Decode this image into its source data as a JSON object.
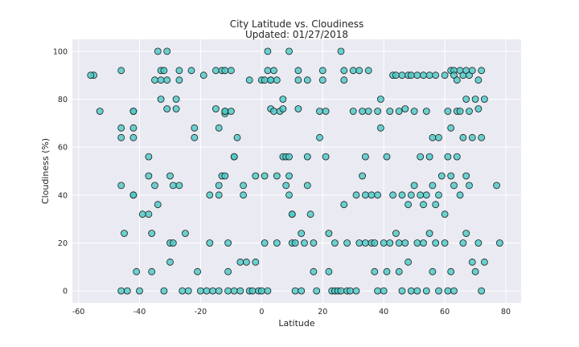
{
  "chart_data": {
    "type": "scatter",
    "title": "City Latitude vs. Cloudiness",
    "subtitle": "Updated: 01/27/2018",
    "xlabel": "Latitude",
    "ylabel": "Cloudiness (%)",
    "xlim": [
      -62,
      85
    ],
    "ylim": [
      -5,
      105
    ],
    "xticks": [
      -60,
      -40,
      -20,
      0,
      20,
      40,
      60,
      80
    ],
    "yticks": [
      0,
      20,
      40,
      60,
      80,
      100
    ],
    "grid": true,
    "legend": "none",
    "colors": {
      "background": "#eaeaf2",
      "grid": "#ffffff",
      "marker_fill": "#48c9c5",
      "marker_edge": "#1a1a1a",
      "text": "#262626"
    },
    "points": [
      [
        -55,
        90
      ],
      [
        -53,
        75
      ],
      [
        -46,
        92
      ],
      [
        -46,
        68
      ],
      [
        -46,
        64
      ],
      [
        -46,
        44
      ],
      [
        -45,
        24
      ],
      [
        -46,
        0
      ],
      [
        -44,
        0
      ],
      [
        -42,
        75
      ],
      [
        -42,
        75
      ],
      [
        -42,
        68
      ],
      [
        -42,
        64
      ],
      [
        -42,
        40
      ],
      [
        -42,
        40
      ],
      [
        -41,
        8
      ],
      [
        -40,
        0
      ],
      [
        -39,
        32
      ],
      [
        -37,
        56
      ],
      [
        -37,
        48
      ],
      [
        -37,
        32
      ],
      [
        -36,
        24
      ],
      [
        -36,
        8
      ],
      [
        -35,
        88
      ],
      [
        -35,
        44
      ],
      [
        -34,
        36
      ],
      [
        -33,
        80
      ],
      [
        -33,
        88
      ],
      [
        -33,
        92
      ],
      [
        -32,
        92
      ],
      [
        -32,
        0
      ],
      [
        -31,
        100
      ],
      [
        -31,
        88
      ],
      [
        -31,
        76
      ],
      [
        -30,
        48
      ],
      [
        -30,
        12
      ],
      [
        -30,
        20
      ],
      [
        -29,
        20
      ],
      [
        -29,
        44
      ],
      [
        -28,
        76
      ],
      [
        -28,
        80
      ],
      [
        -27,
        88
      ],
      [
        -27,
        92
      ],
      [
        -27,
        44
      ],
      [
        -26,
        0
      ],
      [
        -25,
        24
      ],
      [
        -24,
        0
      ],
      [
        -23,
        92
      ],
      [
        -22,
        68
      ],
      [
        -22,
        64
      ],
      [
        -21,
        8
      ],
      [
        -20,
        0
      ],
      [
        -19,
        90
      ],
      [
        -18,
        0
      ],
      [
        -17,
        40
      ],
      [
        -17,
        20
      ],
      [
        -16,
        0
      ],
      [
        -15,
        92
      ],
      [
        -15,
        76
      ],
      [
        -14,
        68
      ],
      [
        -14,
        44
      ],
      [
        -14,
        40
      ],
      [
        -14,
        0
      ],
      [
        -13,
        48
      ],
      [
        -13,
        92
      ],
      [
        -12,
        92
      ],
      [
        -12,
        74
      ],
      [
        -12,
        75
      ],
      [
        -12,
        75
      ],
      [
        -12,
        48
      ],
      [
        -11,
        20
      ],
      [
        -11,
        0
      ],
      [
        -11,
        8
      ],
      [
        -10,
        92
      ],
      [
        -10,
        75
      ],
      [
        -9,
        56
      ],
      [
        -9,
        56
      ],
      [
        -9,
        0
      ],
      [
        -8,
        64
      ],
      [
        -7,
        12
      ],
      [
        -7,
        0
      ],
      [
        -6,
        40
      ],
      [
        -6,
        44
      ],
      [
        -5,
        12
      ],
      [
        -4,
        88
      ],
      [
        -4,
        0
      ],
      [
        -3,
        0
      ],
      [
        -2,
        48
      ],
      [
        -2,
        12
      ],
      [
        -1,
        0
      ],
      [
        0,
        88
      ],
      [
        0,
        0
      ],
      [
        1,
        88
      ],
      [
        1,
        48
      ],
      [
        1,
        20
      ],
      [
        2,
        92
      ],
      [
        2,
        0
      ],
      [
        3,
        88
      ],
      [
        3,
        88
      ],
      [
        3,
        76
      ],
      [
        4,
        92
      ],
      [
        4,
        75
      ],
      [
        5,
        88
      ],
      [
        5,
        48
      ],
      [
        5,
        20
      ],
      [
        6,
        75
      ],
      [
        7,
        56
      ],
      [
        7,
        80
      ],
      [
        7,
        76
      ],
      [
        8,
        44
      ],
      [
        8,
        56
      ],
      [
        9,
        56
      ],
      [
        9,
        48
      ],
      [
        9,
        40
      ],
      [
        10,
        32
      ],
      [
        10,
        32
      ],
      [
        10,
        20
      ],
      [
        11,
        20
      ],
      [
        11,
        0
      ],
      [
        12,
        92
      ],
      [
        12,
        88
      ],
      [
        12,
        76
      ],
      [
        13,
        24
      ],
      [
        13,
        0
      ],
      [
        14,
        20
      ],
      [
        15,
        88
      ],
      [
        15,
        56
      ],
      [
        15,
        44
      ],
      [
        16,
        32
      ],
      [
        17,
        20
      ],
      [
        17,
        8
      ],
      [
        18,
        0
      ],
      [
        19,
        75
      ],
      [
        19,
        64
      ],
      [
        20,
        92
      ],
      [
        20,
        88
      ],
      [
        21,
        75
      ],
      [
        21,
        56
      ],
      [
        22,
        24
      ],
      [
        22,
        8
      ],
      [
        23,
        0
      ],
      [
        24,
        0
      ],
      [
        24,
        20
      ],
      [
        25,
        0
      ],
      [
        26,
        0
      ],
      [
        27,
        92
      ],
      [
        27,
        88
      ],
      [
        27,
        36
      ],
      [
        28,
        20
      ],
      [
        28,
        0
      ],
      [
        29,
        0
      ],
      [
        30,
        92
      ],
      [
        30,
        75
      ],
      [
        31,
        40
      ],
      [
        31,
        0
      ],
      [
        32,
        20
      ],
      [
        32,
        92
      ],
      [
        33,
        75
      ],
      [
        33,
        48
      ],
      [
        34,
        56
      ],
      [
        34,
        40
      ],
      [
        34,
        20
      ],
      [
        35,
        92
      ],
      [
        35,
        75
      ],
      [
        36,
        40
      ],
      [
        36,
        20
      ],
      [
        37,
        20
      ],
      [
        37,
        8
      ],
      [
        38,
        75
      ],
      [
        38,
        40
      ],
      [
        38,
        0
      ],
      [
        39,
        80
      ],
      [
        39,
        68
      ],
      [
        40,
        20
      ],
      [
        40,
        0
      ],
      [
        41,
        56
      ],
      [
        41,
        8
      ],
      [
        42,
        75
      ],
      [
        42,
        20
      ],
      [
        43,
        90
      ],
      [
        43,
        40
      ],
      [
        44,
        90
      ],
      [
        44,
        24
      ],
      [
        45,
        75
      ],
      [
        45,
        20
      ],
      [
        45,
        8
      ],
      [
        46,
        90
      ],
      [
        46,
        40
      ],
      [
        46,
        0
      ],
      [
        47,
        76
      ],
      [
        47,
        20
      ],
      [
        48,
        90
      ],
      [
        48,
        36
      ],
      [
        48,
        12
      ],
      [
        49,
        90
      ],
      [
        49,
        40
      ],
      [
        49,
        0
      ],
      [
        50,
        75
      ],
      [
        50,
        44
      ],
      [
        51,
        90
      ],
      [
        51,
        20
      ],
      [
        51,
        0
      ],
      [
        52,
        56
      ],
      [
        52,
        40
      ],
      [
        53,
        90
      ],
      [
        53,
        36
      ],
      [
        53,
        20
      ],
      [
        54,
        75
      ],
      [
        54,
        40
      ],
      [
        54,
        0
      ],
      [
        55,
        90
      ],
      [
        55,
        56
      ],
      [
        55,
        24
      ],
      [
        56,
        64
      ],
      [
        56,
        44
      ],
      [
        56,
        8
      ],
      [
        57,
        90
      ],
      [
        57,
        36
      ],
      [
        57,
        20
      ],
      [
        58,
        64
      ],
      [
        58,
        40
      ],
      [
        58,
        0
      ],
      [
        59,
        48
      ],
      [
        60,
        90
      ],
      [
        60,
        32
      ],
      [
        60,
        20
      ],
      [
        61,
        75
      ],
      [
        61,
        56
      ],
      [
        61,
        0
      ],
      [
        62,
        92
      ],
      [
        62,
        68
      ],
      [
        62,
        48
      ],
      [
        62,
        8
      ],
      [
        63,
        92
      ],
      [
        63,
        90
      ],
      [
        63,
        44
      ],
      [
        63,
        0
      ],
      [
        64,
        88
      ],
      [
        64,
        75
      ],
      [
        64,
        56
      ],
      [
        65,
        92
      ],
      [
        65,
        75
      ],
      [
        65,
        40
      ],
      [
        66,
        90
      ],
      [
        66,
        64
      ],
      [
        66,
        20
      ],
      [
        67,
        92
      ],
      [
        67,
        80
      ],
      [
        67,
        48
      ],
      [
        67,
        24
      ],
      [
        68,
        90
      ],
      [
        68,
        75
      ],
      [
        68,
        44
      ],
      [
        69,
        92
      ],
      [
        69,
        64
      ],
      [
        69,
        12
      ],
      [
        70,
        80
      ],
      [
        70,
        8
      ],
      [
        71,
        88
      ],
      [
        71,
        76
      ],
      [
        71,
        20
      ],
      [
        72,
        92
      ],
      [
        72,
        64
      ],
      [
        72,
        0
      ],
      [
        73,
        80
      ],
      [
        73,
        12
      ],
      [
        77,
        44
      ],
      [
        78,
        20
      ],
      [
        -56,
        90
      ],
      [
        2,
        100
      ],
      [
        9,
        100
      ],
      [
        26,
        100
      ],
      [
        -34,
        100
      ]
    ]
  }
}
